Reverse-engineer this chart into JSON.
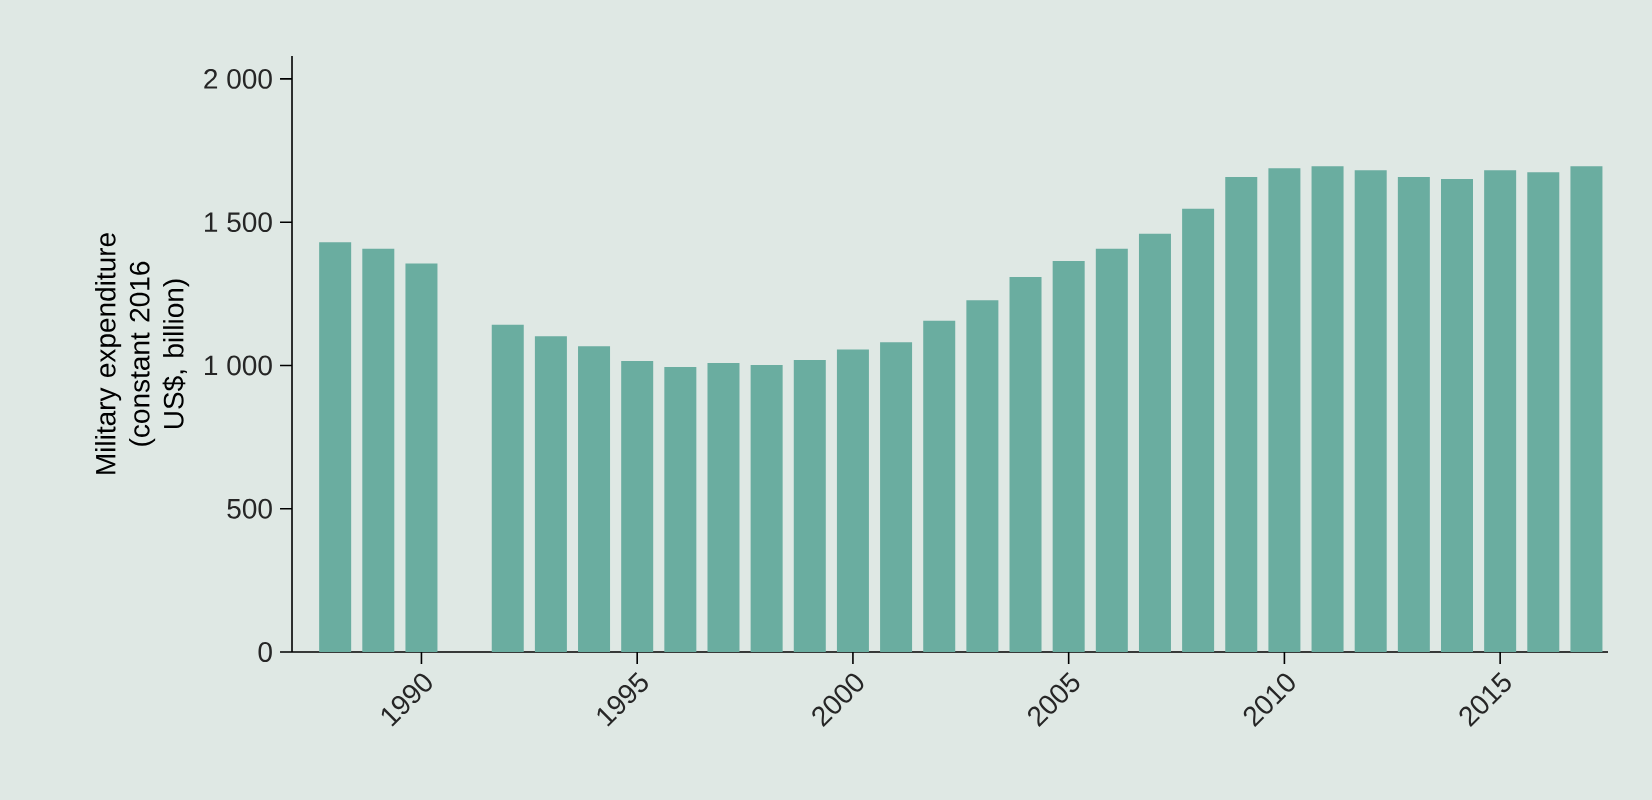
{
  "chart_data": {
    "type": "bar",
    "ylabel": "Military expenditure (constant 2016 US$, billion)",
    "x": [
      1988,
      1989,
      1990,
      1991,
      1992,
      1993,
      1994,
      1995,
      1996,
      1997,
      1998,
      1999,
      2000,
      2001,
      2002,
      2003,
      2004,
      2005,
      2006,
      2007,
      2008,
      2009,
      2010,
      2011,
      2012,
      2013,
      2014,
      2015,
      2016,
      2017
    ],
    "values": [
      1430,
      1407,
      1356,
      null,
      1142,
      1102,
      1067,
      1016,
      995,
      1009,
      1002,
      1019,
      1056,
      1081,
      1156,
      1228,
      1309,
      1365,
      1407,
      1460,
      1547,
      1658,
      1688,
      1695,
      1681,
      1658,
      1651,
      1681,
      1674,
      1695
    ],
    "color": "#6aada0",
    "xlim": [
      1987,
      2017.5
    ],
    "xticks": [
      1990,
      1995,
      2000,
      2005,
      2010,
      2015
    ],
    "ylim": [
      0,
      2080
    ],
    "yticks": [
      {
        "value": 0,
        "label": "0"
      },
      {
        "value": 500,
        "label": "500"
      },
      {
        "value": 1000,
        "label": "1 000"
      },
      {
        "value": 1500,
        "label": "1 500"
      },
      {
        "value": 2000,
        "label": "2 000"
      }
    ]
  }
}
